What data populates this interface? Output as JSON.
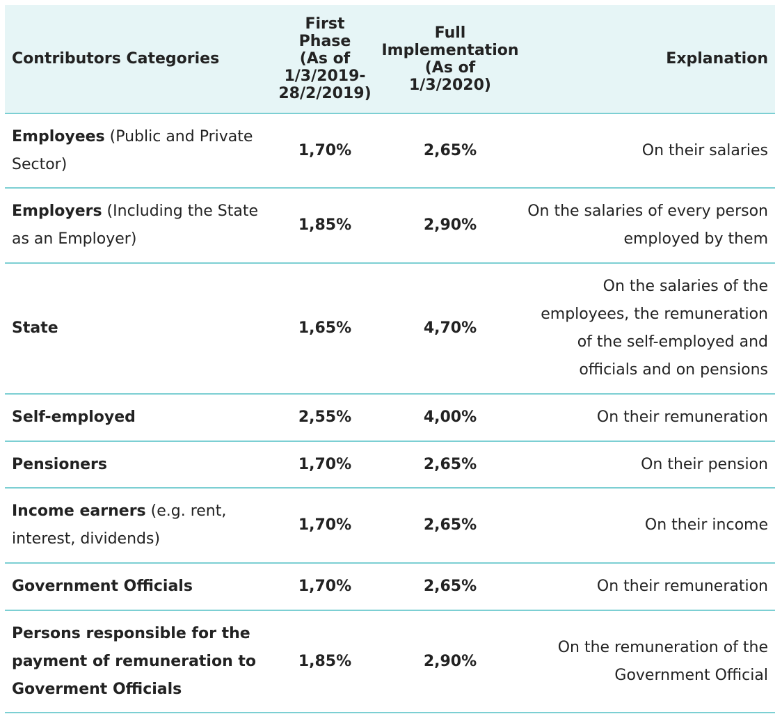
{
  "headers": {
    "category": "Contributors Categories",
    "first_phase": [
      "First",
      "Phase",
      "(As of",
      "1/3/2019-",
      "28/2/2019)"
    ],
    "full_impl": [
      "Full",
      "Implementation",
      "(As of 1/3/2020)"
    ],
    "explanation": "Explanation"
  },
  "rows": [
    {
      "name": "Employees",
      "note": " (Public and Private Sector)",
      "first": "1,70%",
      "full": "2,65%",
      "explanation": "On their salaries"
    },
    {
      "name": "Employers",
      "note": " (Including the State as an Employer)",
      "first": "1,85%",
      "full": "2,90%",
      "explanation": "On the salaries of every person employed by them"
    },
    {
      "name": "State",
      "note": "",
      "first": "1,65%",
      "full": "4,70%",
      "explanation": "On the salaries of the employees, the remuneration of the self-employed and officials and on pensions"
    },
    {
      "name": "Self-employed",
      "note": "",
      "first": "2,55%",
      "full": "4,00%",
      "explanation": "On their remuneration"
    },
    {
      "name": "Pensioners",
      "note": "",
      "first": "1,70%",
      "full": "2,65%",
      "explanation": "On their pension"
    },
    {
      "name": "Income earners",
      "note": " (e.g. rent, interest, dividends)",
      "first": "1,70%",
      "full": "2,65%",
      "explanation": "On their income"
    },
    {
      "name": "Government Officials",
      "note": "",
      "first": "1,70%",
      "full": "2,65%",
      "explanation": "On their remuneration"
    },
    {
      "name": "Persons responsible for the payment of remuneration to Goverment Officials",
      "note": "",
      "first": "1,85%",
      "full": "2,90%",
      "explanation": "On the remuneration of the Government Official"
    }
  ],
  "colors": {
    "header_bg": "#e6f5f6",
    "divider": "#7ccfd3",
    "text": "#222222"
  }
}
